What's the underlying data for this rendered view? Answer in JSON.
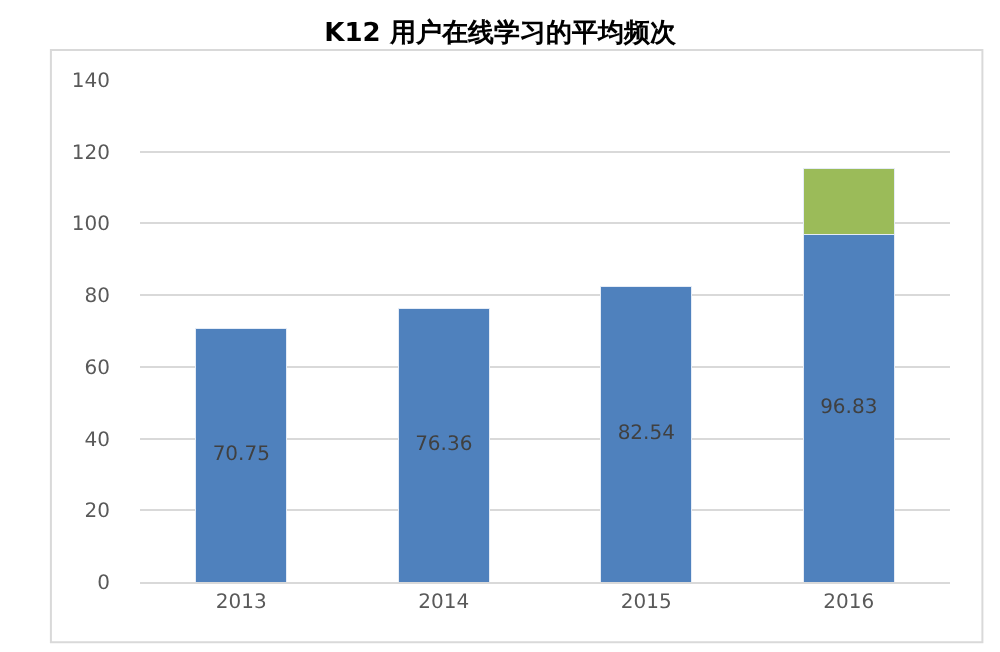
{
  "chart_data": {
    "type": "bar",
    "title": "K12 用户在线学习的平均频次",
    "stacked": true,
    "categories": [
      "2013",
      "2014",
      "2015",
      "2016"
    ],
    "series": [
      {
        "color": "#4f81bd",
        "values": [
          70.75,
          76.36,
          82.54,
          96.83
        ],
        "value_labels": [
          "70.75",
          "76.36",
          "82.54",
          "96.83"
        ]
      },
      {
        "color": "#9bbb59",
        "values": [
          null,
          null,
          null,
          18.5
        ]
      }
    ],
    "ylim": [
      0,
      140
    ],
    "yticks": [
      0,
      20,
      40,
      60,
      80,
      100,
      120,
      140
    ],
    "grid": "y"
  }
}
